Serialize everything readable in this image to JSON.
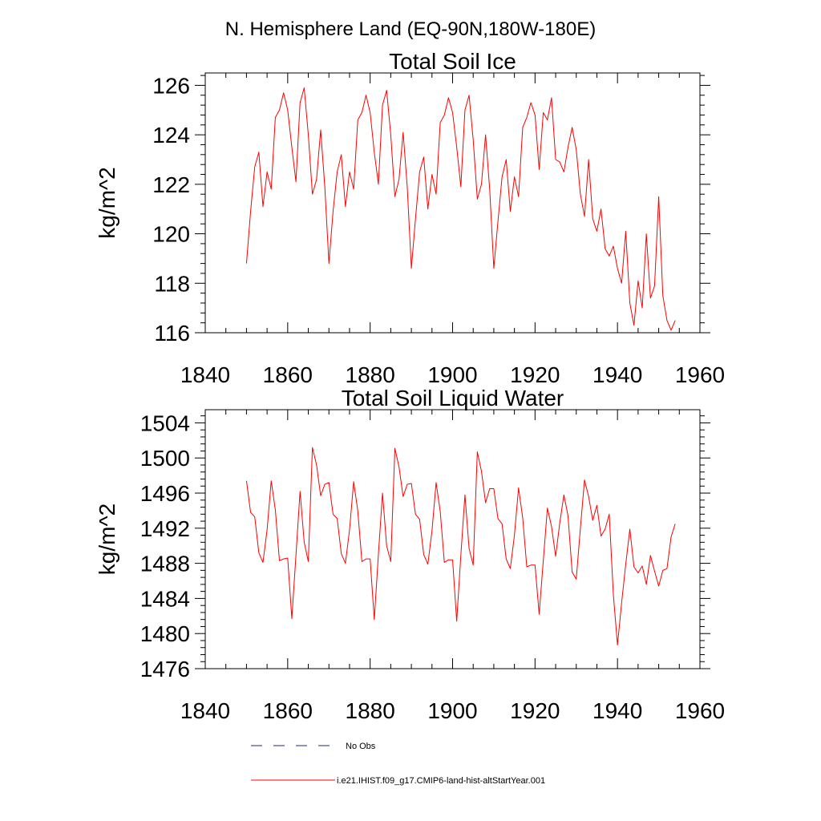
{
  "page": {
    "title": "N. Hemisphere Land (EQ-90N,180W-180E)"
  },
  "colors": {
    "series": "#ff0000",
    "obs": "#1f2a7a",
    "axis": "#000000"
  },
  "legend": {
    "obs_label": "No Obs",
    "model_label": "i.e21.IHIST.f09_g17.CMIP6-land-hist-altStartYear.001"
  },
  "chart_data": [
    {
      "type": "line",
      "title": "Total Soil Ice",
      "xlabel": "",
      "ylabel": "kg/m^2",
      "xlim": [
        1840,
        1960
      ],
      "ylim": [
        116,
        126.5
      ],
      "xticks": [
        1840,
        1860,
        1880,
        1900,
        1920,
        1940,
        1960
      ],
      "yticks": [
        116,
        118,
        120,
        122,
        124,
        126
      ],
      "x_start": 1850,
      "x_step": 1,
      "series": [
        {
          "values": [
            118.8,
            120.9,
            122.7,
            123.3,
            121.1,
            122.5,
            121.8,
            124.7,
            125.0,
            125.7,
            125.0,
            123.5,
            122.1,
            125.3,
            125.9,
            124.0,
            121.6,
            122.2,
            124.2,
            121.9,
            118.8,
            120.9,
            122.5,
            123.2,
            121.1,
            122.5,
            121.8,
            124.6,
            124.9,
            125.6,
            124.9,
            123.3,
            122.0,
            125.2,
            125.8,
            124.0,
            121.5,
            122.2,
            124.1,
            121.9,
            118.6,
            120.6,
            122.5,
            123.1,
            121.0,
            122.4,
            121.6,
            124.5,
            124.8,
            125.5,
            124.9,
            123.5,
            121.9,
            125.0,
            125.6,
            123.8,
            121.4,
            122.0,
            124.0,
            121.8,
            118.6,
            120.5,
            122.3,
            123.0,
            120.9,
            122.3,
            121.5,
            124.3,
            124.7,
            125.3,
            124.8,
            122.6,
            124.9,
            124.6,
            125.5,
            123.0,
            122.9,
            122.5,
            123.5,
            124.3,
            123.4,
            121.6,
            120.7,
            123.0,
            120.6,
            120.1,
            121.0,
            119.4,
            119.1,
            119.5,
            118.6,
            118.0,
            120.1,
            117.2,
            116.3,
            118.1,
            117.0,
            120.0,
            117.4,
            117.9,
            121.5,
            117.5,
            116.5,
            116.1,
            116.5
          ]
        }
      ]
    },
    {
      "type": "line",
      "title": "Total Soil Liquid Water",
      "xlabel": "",
      "ylabel": "kg/m^2",
      "xlim": [
        1840,
        1960
      ],
      "ylim": [
        1476,
        1505.5
      ],
      "xticks": [
        1840,
        1860,
        1880,
        1900,
        1920,
        1940,
        1960
      ],
      "yticks": [
        1476,
        1480,
        1484,
        1488,
        1492,
        1496,
        1500,
        1504
      ],
      "x_start": 1850,
      "x_step": 1,
      "series": [
        {
          "values": [
            1497.4,
            1493.8,
            1493.3,
            1489.2,
            1488.1,
            1491.8,
            1497.4,
            1494.1,
            1488.3,
            1488.5,
            1488.6,
            1481.7,
            1488.9,
            1496.2,
            1490.4,
            1488.2,
            1501.2,
            1499.2,
            1495.7,
            1497.0,
            1497.2,
            1493.6,
            1493.1,
            1489.1,
            1488.0,
            1491.8,
            1497.3,
            1494.0,
            1488.2,
            1488.5,
            1488.5,
            1481.6,
            1489.0,
            1496.0,
            1490.0,
            1488.2,
            1501.1,
            1499.0,
            1495.6,
            1497.0,
            1497.1,
            1493.6,
            1493.0,
            1489.0,
            1487.9,
            1491.7,
            1497.2,
            1493.9,
            1488.1,
            1488.4,
            1488.4,
            1481.4,
            1488.9,
            1495.8,
            1489.7,
            1487.8,
            1500.7,
            1498.5,
            1494.9,
            1496.5,
            1496.5,
            1493.1,
            1492.5,
            1488.5,
            1487.4,
            1491.2,
            1496.6,
            1493.2,
            1487.6,
            1487.8,
            1487.8,
            1482.2,
            1488.3,
            1494.3,
            1492.2,
            1488.8,
            1492.6,
            1495.8,
            1493.4,
            1487.0,
            1486.2,
            1492.0,
            1497.5,
            1495.6,
            1492.9,
            1494.6,
            1491.1,
            1491.9,
            1493.6,
            1484.4,
            1478.7,
            1483.5,
            1487.9,
            1491.9,
            1487.6,
            1486.9,
            1487.7,
            1485.6,
            1488.9,
            1487.1,
            1485.4,
            1487.2,
            1487.4,
            1491.0,
            1492.5
          ]
        }
      ]
    }
  ]
}
